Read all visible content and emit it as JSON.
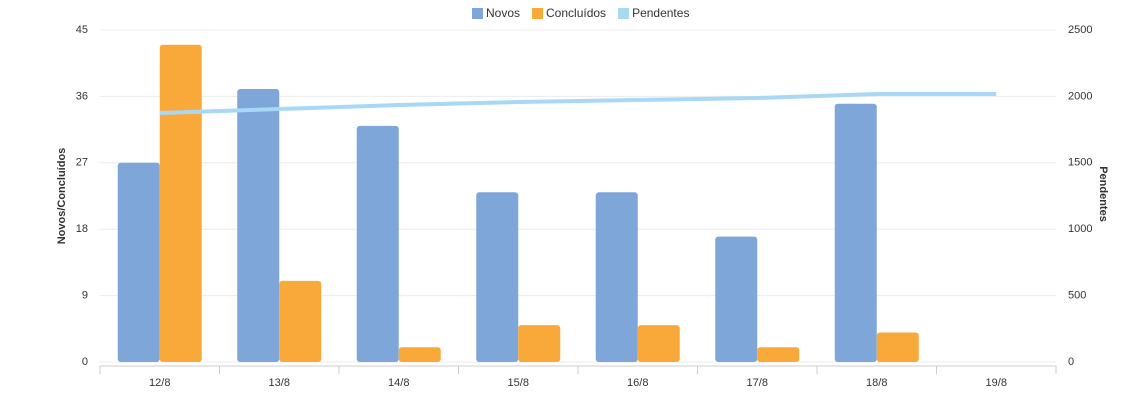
{
  "chart_data": {
    "type": "bar_line",
    "categories": [
      "12/8",
      "13/8",
      "14/8",
      "15/8",
      "16/8",
      "17/8",
      "18/8",
      "19/8"
    ],
    "series": [
      {
        "name": "Novos",
        "color": "#7ea6d8",
        "type": "bar",
        "values": [
          27,
          37,
          32,
          23,
          23,
          17,
          35,
          0
        ]
      },
      {
        "name": "Concluídos",
        "color": "#f9a93a",
        "type": "bar",
        "values": [
          43,
          11,
          2,
          5,
          5,
          2,
          4,
          0
        ]
      },
      {
        "name": "Pendentes",
        "color": "#a8d8f5",
        "type": "line",
        "axis": "y2",
        "values": [
          1875,
          1905,
          1935,
          1958,
          1973,
          1988,
          2018,
          2018
        ]
      }
    ],
    "ylabel": "Novos/Concluídos",
    "y2label": "Pendentes",
    "ylim": [
      0,
      45
    ],
    "yticks": [
      0,
      9,
      18,
      27,
      36,
      45
    ],
    "y2lim": [
      0,
      2500
    ],
    "y2ticks": [
      0,
      500,
      1000,
      1500,
      2000,
      2500
    ],
    "grid": true,
    "legend": "top"
  }
}
